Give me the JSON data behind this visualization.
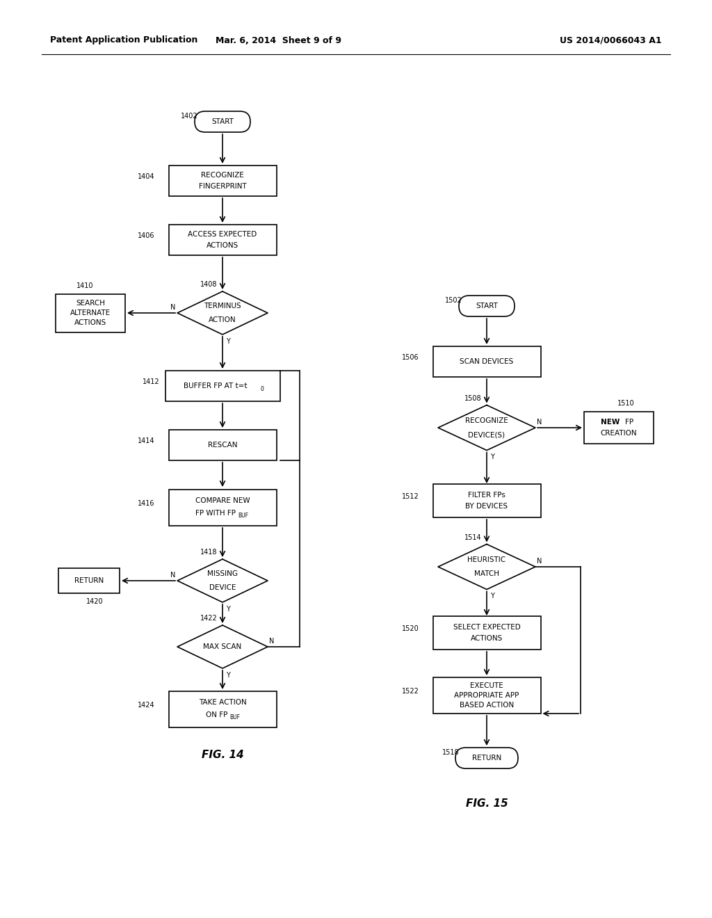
{
  "header_left": "Patent Application Publication",
  "header_mid": "Mar. 6, 2014  Sheet 9 of 9",
  "header_right": "US 2014/0066043 A1",
  "fig14_caption": "FIG. 14",
  "fig15_caption": "FIG. 15",
  "bg_color": "#ffffff",
  "line_color": "#000000",
  "text_color": "#000000",
  "box_color": "#ffffff"
}
